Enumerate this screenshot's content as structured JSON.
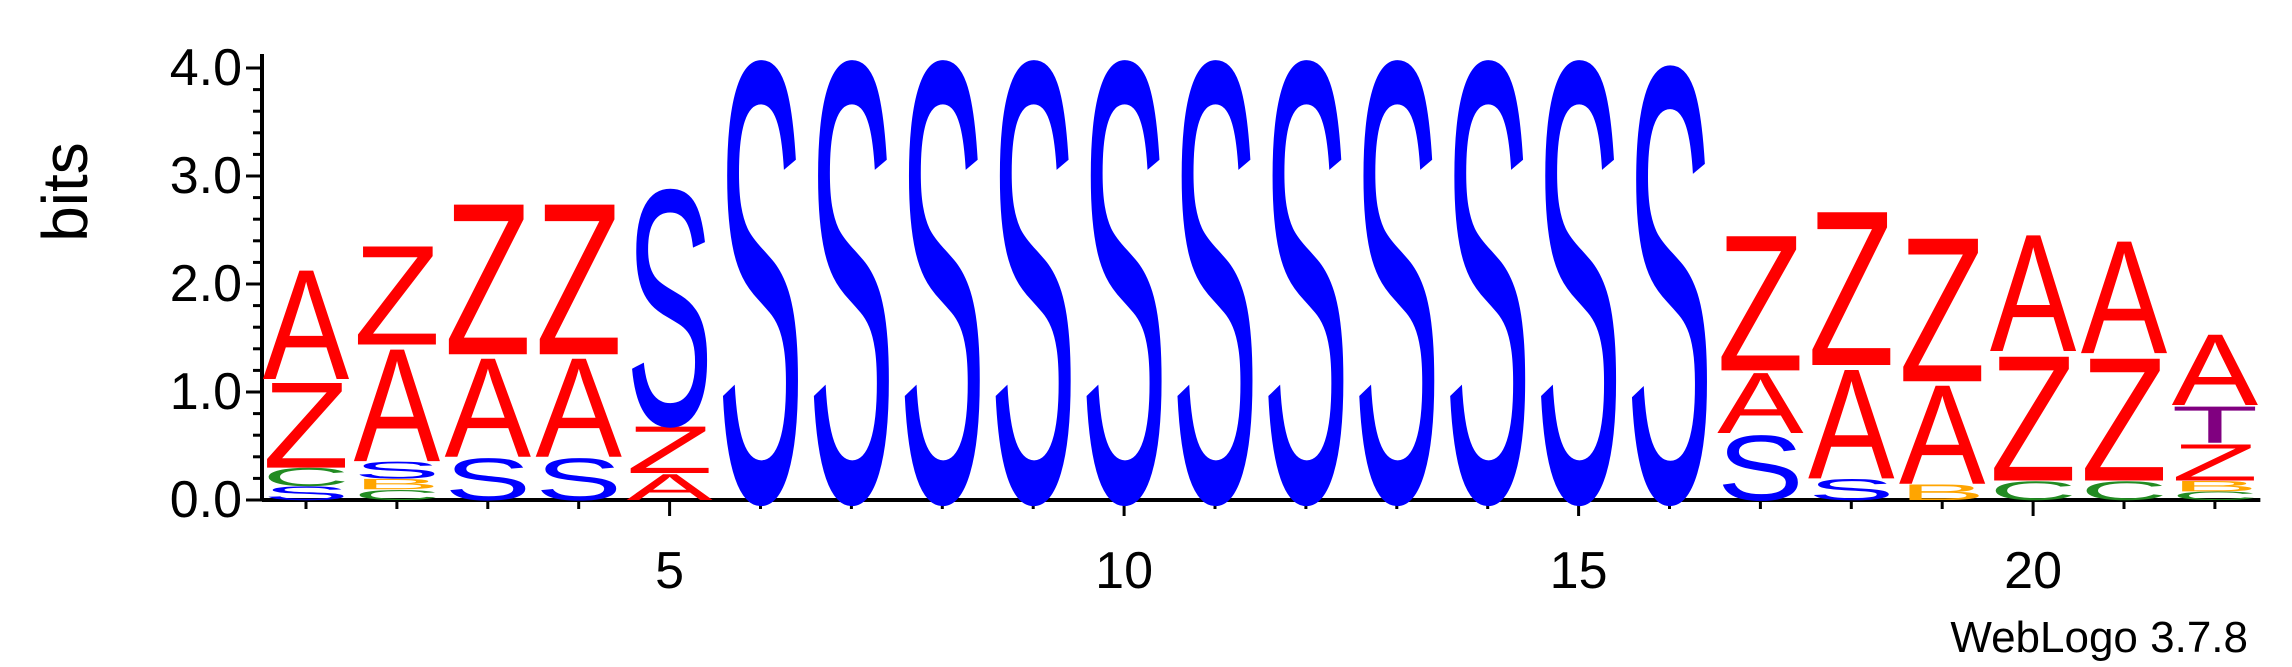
{
  "chart_data": {
    "type": "sequence-logo",
    "ylabel": "bits",
    "ylim": [
      0,
      4.0
    ],
    "y_ticks": [
      "0.0",
      "1.0",
      "2.0",
      "3.0",
      "4.0"
    ],
    "x_range": [
      1,
      22
    ],
    "x_ticks": [
      "5",
      "10",
      "15",
      "20"
    ],
    "x_tick_positions": [
      5,
      10,
      15,
      20
    ],
    "colors": {
      "A": "#ff0000",
      "Z": "#ff0000",
      "S": "#0000ff",
      "C": "#228b22",
      "B": "#ffa500",
      "T": "#800080"
    },
    "positions": [
      {
        "pos": 1,
        "stack": [
          [
            "S",
            0.13
          ],
          [
            "C",
            0.17
          ],
          [
            "Z",
            0.82
          ],
          [
            "A",
            1.05
          ]
        ]
      },
      {
        "pos": 2,
        "stack": [
          [
            "C",
            0.1
          ],
          [
            "B",
            0.1
          ],
          [
            "S",
            0.16
          ],
          [
            "A",
            1.08
          ],
          [
            "Z",
            0.95
          ]
        ]
      },
      {
        "pos": 3,
        "stack": [
          [
            "S",
            0.4
          ],
          [
            "A",
            0.95
          ],
          [
            "Z",
            1.45
          ]
        ]
      },
      {
        "pos": 4,
        "stack": [
          [
            "S",
            0.4
          ],
          [
            "A",
            0.95
          ],
          [
            "Z",
            1.45
          ]
        ]
      },
      {
        "pos": 5,
        "stack": [
          [
            "A",
            0.25
          ],
          [
            "Z",
            0.45
          ],
          [
            "S",
            2.25
          ]
        ]
      },
      {
        "pos": 6,
        "stack": [
          [
            "S",
            4.2
          ]
        ]
      },
      {
        "pos": 7,
        "stack": [
          [
            "S",
            4.2
          ]
        ]
      },
      {
        "pos": 8,
        "stack": [
          [
            "S",
            4.2
          ]
        ]
      },
      {
        "pos": 9,
        "stack": [
          [
            "S",
            4.2
          ]
        ]
      },
      {
        "pos": 10,
        "stack": [
          [
            "S",
            4.2
          ]
        ]
      },
      {
        "pos": 11,
        "stack": [
          [
            "S",
            4.2
          ]
        ]
      },
      {
        "pos": 12,
        "stack": [
          [
            "S",
            4.2
          ]
        ]
      },
      {
        "pos": 13,
        "stack": [
          [
            "S",
            4.2
          ]
        ]
      },
      {
        "pos": 14,
        "stack": [
          [
            "S",
            4.2
          ]
        ]
      },
      {
        "pos": 15,
        "stack": [
          [
            "S",
            4.2
          ]
        ]
      },
      {
        "pos": 16,
        "stack": [
          [
            "S",
            4.15
          ]
        ]
      },
      {
        "pos": 17,
        "stack": [
          [
            "S",
            0.62
          ],
          [
            "A",
            0.58
          ],
          [
            "Z",
            1.3
          ]
        ]
      },
      {
        "pos": 18,
        "stack": [
          [
            "S",
            0.2
          ],
          [
            "A",
            1.05
          ],
          [
            "Z",
            1.48
          ]
        ]
      },
      {
        "pos": 19,
        "stack": [
          [
            "B",
            0.15
          ],
          [
            "A",
            0.95
          ],
          [
            "Z",
            1.38
          ]
        ]
      },
      {
        "pos": 20,
        "stack": [
          [
            "C",
            0.18
          ],
          [
            "Z",
            1.2
          ],
          [
            "A",
            1.12
          ]
        ]
      },
      {
        "pos": 21,
        "stack": [
          [
            "C",
            0.18
          ],
          [
            "Z",
            1.18
          ],
          [
            "A",
            1.08
          ]
        ]
      },
      {
        "pos": 22,
        "stack": [
          [
            "C",
            0.08
          ],
          [
            "B",
            0.1
          ],
          [
            "Z",
            0.35
          ],
          [
            "T",
            0.35
          ],
          [
            "A",
            0.68
          ]
        ]
      }
    ]
  },
  "footer": {
    "credit": "WebLogo 3.7.8"
  }
}
